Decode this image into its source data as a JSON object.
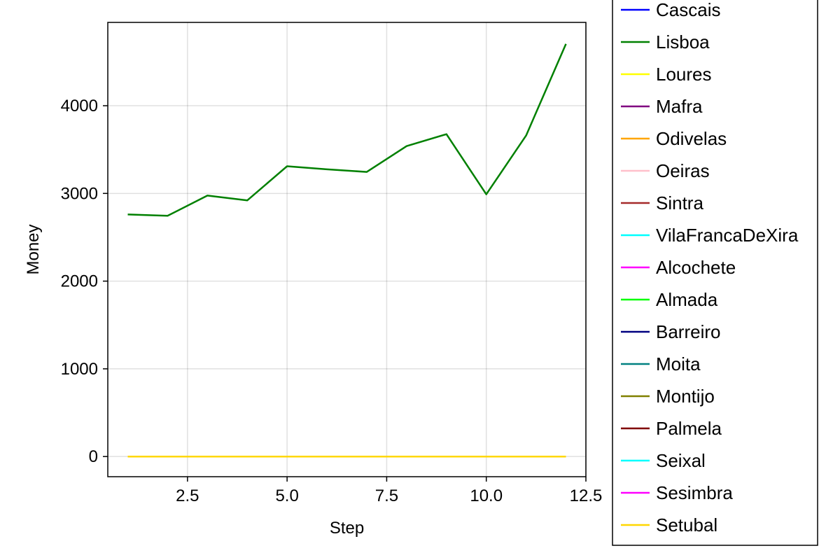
{
  "chart_data": {
    "type": "line",
    "title": "",
    "xlabel": "Step",
    "ylabel": "Money",
    "xlim": [
      0.5,
      12.5
    ],
    "ylim": [
      -230,
      4950
    ],
    "xticks": [
      2.5,
      5.0,
      7.5,
      10.0,
      12.5
    ],
    "xtick_labels": [
      "2.5",
      "5.0",
      "7.5",
      "10.0",
      "12.5"
    ],
    "yticks": [
      0,
      1000,
      2000,
      3000,
      4000
    ],
    "ytick_labels": [
      "0",
      "1000",
      "2000",
      "3000",
      "4000"
    ],
    "grid": true,
    "legend_position": "right",
    "x": [
      1,
      2,
      3,
      4,
      5,
      6,
      7,
      8,
      9,
      10,
      11,
      12
    ],
    "series": [
      {
        "name": "Cascais",
        "color": "#0000ff",
        "values": [
          0,
          0,
          0,
          0,
          0,
          0,
          0,
          0,
          0,
          0,
          0,
          0
        ]
      },
      {
        "name": "Lisboa",
        "color": "#008000",
        "values": [
          2760,
          2745,
          2975,
          2920,
          3310,
          3275,
          3245,
          3540,
          3675,
          2990,
          3660,
          4705
        ]
      },
      {
        "name": "Loures",
        "color": "#ffff00",
        "values": [
          0,
          0,
          0,
          0,
          0,
          0,
          0,
          0,
          0,
          0,
          0,
          0
        ]
      },
      {
        "name": "Mafra",
        "color": "#800080",
        "values": [
          0,
          0,
          0,
          0,
          0,
          0,
          0,
          0,
          0,
          0,
          0,
          0
        ]
      },
      {
        "name": "Odivelas",
        "color": "#ffa500",
        "values": [
          0,
          0,
          0,
          0,
          0,
          0,
          0,
          0,
          0,
          0,
          0,
          0
        ]
      },
      {
        "name": "Oeiras",
        "color": "#ffc0cb",
        "values": [
          0,
          0,
          0,
          0,
          0,
          0,
          0,
          0,
          0,
          0,
          0,
          0
        ]
      },
      {
        "name": "Sintra",
        "color": "#a52a2a",
        "values": [
          0,
          0,
          0,
          0,
          0,
          0,
          0,
          0,
          0,
          0,
          0,
          0
        ]
      },
      {
        "name": "VilaFrancaDeXira",
        "color": "#00ffff",
        "values": [
          0,
          0,
          0,
          0,
          0,
          0,
          0,
          0,
          0,
          0,
          0,
          0
        ]
      },
      {
        "name": "Alcochete",
        "color": "#ff00ff",
        "values": [
          0,
          0,
          0,
          0,
          0,
          0,
          0,
          0,
          0,
          0,
          0,
          0
        ]
      },
      {
        "name": "Almada",
        "color": "#00ff00",
        "values": [
          0,
          0,
          0,
          0,
          0,
          0,
          0,
          0,
          0,
          0,
          0,
          0
        ]
      },
      {
        "name": "Barreiro",
        "color": "#000080",
        "values": [
          0,
          0,
          0,
          0,
          0,
          0,
          0,
          0,
          0,
          0,
          0,
          0
        ]
      },
      {
        "name": "Moita",
        "color": "#008080",
        "values": [
          0,
          0,
          0,
          0,
          0,
          0,
          0,
          0,
          0,
          0,
          0,
          0
        ]
      },
      {
        "name": "Montijo",
        "color": "#808000",
        "values": [
          0,
          0,
          0,
          0,
          0,
          0,
          0,
          0,
          0,
          0,
          0,
          0
        ]
      },
      {
        "name": "Palmela",
        "color": "#800000",
        "values": [
          0,
          0,
          0,
          0,
          0,
          0,
          0,
          0,
          0,
          0,
          0,
          0
        ]
      },
      {
        "name": "Seixal",
        "color": "#00ffff",
        "values": [
          0,
          0,
          0,
          0,
          0,
          0,
          0,
          0,
          0,
          0,
          0,
          0
        ]
      },
      {
        "name": "Sesimbra",
        "color": "#ff00ff",
        "values": [
          0,
          0,
          0,
          0,
          0,
          0,
          0,
          0,
          0,
          0,
          0,
          0
        ]
      },
      {
        "name": "Setubal",
        "color": "#ffd700",
        "values": [
          0,
          0,
          0,
          0,
          0,
          0,
          0,
          0,
          0,
          0,
          0,
          0
        ]
      }
    ]
  }
}
